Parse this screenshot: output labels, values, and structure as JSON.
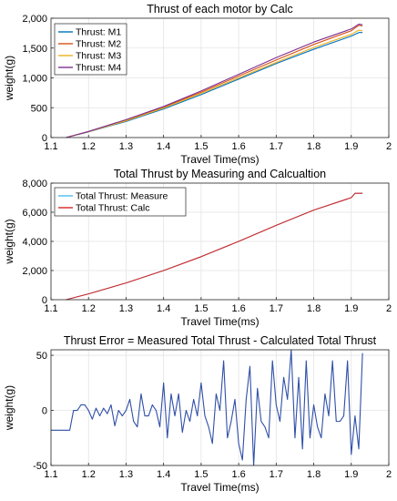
{
  "chart_data": [
    {
      "type": "line",
      "title": "Thrust of each motor by Calc",
      "xlabel": "Travel Time(ms)",
      "ylabel": "weight(g)",
      "xlim": [
        1.1,
        2
      ],
      "ylim": [
        0,
        2000
      ],
      "xticks": [
        "1.1",
        "1.2",
        "1.3",
        "1.4",
        "1.5",
        "1.6",
        "1.7",
        "1.8",
        "1.9",
        "2"
      ],
      "yticks": [
        "0",
        "500",
        "1,000",
        "1,500",
        "2,000"
      ],
      "grid": true,
      "legend": "top-left",
      "series": [
        {
          "name": "Thrust: M1",
          "color": "#0072BD",
          "x": [
            1.14,
            1.2,
            1.3,
            1.4,
            1.5,
            1.6,
            1.7,
            1.8,
            1.9,
            1.92,
            1.93
          ],
          "y": [
            0,
            95,
            270,
            480,
            720,
            980,
            1240,
            1480,
            1700,
            1760,
            1760
          ]
        },
        {
          "name": "Thrust: M2",
          "color": "#D95319",
          "x": [
            1.14,
            1.2,
            1.3,
            1.4,
            1.5,
            1.6,
            1.7,
            1.8,
            1.9,
            1.92,
            1.93
          ],
          "y": [
            0,
            100,
            290,
            510,
            760,
            1030,
            1300,
            1560,
            1790,
            1880,
            1870
          ]
        },
        {
          "name": "Thrust: M3",
          "color": "#EDB120",
          "x": [
            1.14,
            1.2,
            1.3,
            1.4,
            1.5,
            1.6,
            1.7,
            1.8,
            1.9,
            1.92,
            1.93
          ],
          "y": [
            0,
            97,
            280,
            495,
            740,
            1000,
            1260,
            1510,
            1730,
            1800,
            1790
          ]
        },
        {
          "name": "Thrust: M4",
          "color": "#7E2F8E",
          "x": [
            1.14,
            1.2,
            1.3,
            1.4,
            1.5,
            1.6,
            1.7,
            1.8,
            1.9,
            1.92,
            1.93
          ],
          "y": [
            0,
            102,
            300,
            520,
            780,
            1060,
            1340,
            1600,
            1820,
            1900,
            1890
          ]
        }
      ]
    },
    {
      "type": "line",
      "title": "Total Thrust by Measuring and Calcualtion",
      "xlabel": "Travel Time(ms)",
      "ylabel": "weight(g)",
      "xlim": [
        1.1,
        2
      ],
      "ylim": [
        0,
        8000
      ],
      "xticks": [
        "1.1",
        "1.2",
        "1.3",
        "1.4",
        "1.5",
        "1.6",
        "1.7",
        "1.8",
        "1.9",
        "2"
      ],
      "yticks": [
        "0",
        "2,000",
        "4,000",
        "6,000",
        "8,000"
      ],
      "grid": true,
      "legend": "top-left",
      "series": [
        {
          "name": "Total Thrust: Measure",
          "color": "#4DBEEE",
          "x": [
            1.14,
            1.2,
            1.3,
            1.4,
            1.5,
            1.6,
            1.7,
            1.8,
            1.9,
            1.91,
            1.93
          ],
          "y": [
            0,
            400,
            1150,
            2000,
            2950,
            4000,
            5100,
            6150,
            7000,
            7300,
            7300
          ]
        },
        {
          "name": "Total Thrust: Calc",
          "color": "#D62728",
          "x": [
            1.14,
            1.2,
            1.3,
            1.4,
            1.5,
            1.6,
            1.7,
            1.8,
            1.9,
            1.91,
            1.93
          ],
          "y": [
            0,
            400,
            1150,
            2000,
            2950,
            4000,
            5100,
            6150,
            7000,
            7300,
            7300
          ]
        }
      ]
    },
    {
      "type": "line",
      "title": "Thrust Error = Measured Total Thrust - Calculated Total Thrust",
      "xlabel": "Travel Time(ms)",
      "ylabel": "weight(g)",
      "xlim": [
        1.1,
        2
      ],
      "ylim": [
        -50,
        55
      ],
      "xticks": [
        "1.1",
        "1.2",
        "1.3",
        "1.4",
        "1.5",
        "1.6",
        "1.7",
        "1.8",
        "1.9",
        "2"
      ],
      "yticks": [
        "-50",
        "0",
        "50"
      ],
      "grid": true,
      "series": [
        {
          "name": "",
          "color": "#2F4FA8",
          "x": [
            1.1,
            1.15,
            1.16,
            1.17,
            1.18,
            1.19,
            1.2,
            1.21,
            1.22,
            1.23,
            1.24,
            1.25,
            1.26,
            1.27,
            1.28,
            1.29,
            1.3,
            1.31,
            1.32,
            1.33,
            1.34,
            1.35,
            1.36,
            1.37,
            1.38,
            1.39,
            1.4,
            1.41,
            1.42,
            1.43,
            1.44,
            1.45,
            1.46,
            1.47,
            1.48,
            1.49,
            1.5,
            1.51,
            1.52,
            1.53,
            1.54,
            1.55,
            1.56,
            1.57,
            1.58,
            1.59,
            1.6,
            1.61,
            1.62,
            1.63,
            1.64,
            1.65,
            1.66,
            1.67,
            1.68,
            1.69,
            1.7,
            1.71,
            1.72,
            1.73,
            1.74,
            1.75,
            1.76,
            1.77,
            1.78,
            1.79,
            1.8,
            1.81,
            1.82,
            1.83,
            1.84,
            1.85,
            1.86,
            1.87,
            1.88,
            1.89,
            1.9,
            1.91,
            1.92,
            1.93
          ],
          "y": [
            -18,
            -18,
            0,
            0,
            5,
            5,
            0,
            -8,
            2,
            -5,
            2,
            -3,
            5,
            -14,
            0,
            -5,
            0,
            10,
            -10,
            -15,
            15,
            -5,
            -5,
            5,
            0,
            -15,
            25,
            -25,
            15,
            -5,
            15,
            -20,
            0,
            -10,
            10,
            -5,
            25,
            -5,
            -15,
            -30,
            15,
            0,
            45,
            -25,
            -10,
            10,
            -30,
            -45,
            10,
            40,
            -50,
            20,
            -10,
            -15,
            -25,
            45,
            5,
            -10,
            30,
            10,
            55,
            -25,
            30,
            -35,
            45,
            -25,
            5,
            -15,
            -25,
            15,
            -5,
            45,
            -10,
            -10,
            -5,
            45,
            -40,
            -5,
            -35,
            52
          ]
        }
      ]
    }
  ]
}
